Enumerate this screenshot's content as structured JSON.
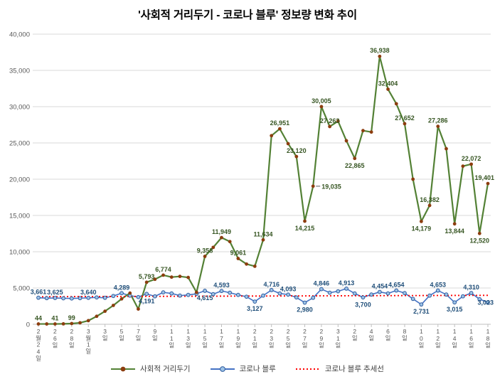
{
  "chart_data": {
    "type": "line",
    "title": "'사회적 거리두기 - 코로나 블루' 정보량 변화 추이",
    "xlabel": "",
    "ylabel": "",
    "ylim": [
      0,
      40000
    ],
    "ystep": 5000,
    "grid": true,
    "legend_position": "bottom",
    "y_tick_labels": [
      "0",
      "5,000",
      "10,000",
      "15,000",
      "20,000",
      "25,000",
      "30,000",
      "35,000",
      "40,000"
    ],
    "x_tick_labels": [
      "2월24일",
      "26일",
      "28일",
      "3월1일",
      "3일",
      "5일",
      "7일",
      "9일",
      "11일",
      "13일",
      "15일",
      "17일",
      "19일",
      "21일",
      "23일",
      "25일",
      "27일",
      "29일",
      "31일",
      "2일",
      "4일",
      "6일",
      "8일",
      "10일",
      "12일",
      "14일",
      "16일",
      "18일"
    ],
    "series": [
      {
        "name": "사회적 거리두기",
        "color": "#538135",
        "marker_color": "#8C3D0F",
        "label_color": "#375623",
        "values": [
          44,
          42,
          41,
          60,
          99,
          200,
          500,
          1100,
          1800,
          2600,
          3500,
          4300,
          2100,
          5793,
          6200,
          6774,
          6500,
          6600,
          6450,
          4400,
          9358,
          10600,
          11949,
          11400,
          9061,
          8300,
          8000,
          11634,
          26000,
          26951,
          24900,
          23120,
          14215,
          19035,
          30005,
          27263,
          28000,
          25300,
          22865,
          26700,
          26500,
          36938,
          32404,
          30400,
          27652,
          20000,
          14179,
          16382,
          27286,
          24200,
          13844,
          21800,
          22072,
          12520,
          19401
        ],
        "labels": [
          {
            "i": 0,
            "t": "44",
            "pos": "above"
          },
          {
            "i": 2,
            "t": "41",
            "pos": "above"
          },
          {
            "i": 4,
            "t": "99",
            "pos": "above"
          },
          {
            "i": 13,
            "t": "5,793",
            "pos": "above"
          },
          {
            "i": 15,
            "t": "6,774",
            "pos": "above"
          },
          {
            "i": 20,
            "t": "9,358",
            "pos": "above"
          },
          {
            "i": 22,
            "t": "11,949",
            "pos": "above"
          },
          {
            "i": 24,
            "t": "9,061",
            "pos": "above"
          },
          {
            "i": 27,
            "t": "11,634",
            "pos": "above"
          },
          {
            "i": 29,
            "t": "26,951",
            "pos": "above"
          },
          {
            "i": 31,
            "t": "23,120",
            "pos": "above"
          },
          {
            "i": 32,
            "t": "14,215",
            "pos": "below"
          },
          {
            "i": 33,
            "t": "19,035",
            "pos": "right"
          },
          {
            "i": 34,
            "t": "30,005",
            "pos": "above"
          },
          {
            "i": 35,
            "t": "27,263",
            "pos": "above"
          },
          {
            "i": 38,
            "t": "22,865",
            "pos": "below"
          },
          {
            "i": 41,
            "t": "36,938",
            "pos": "above"
          },
          {
            "i": 42,
            "t": "32,404",
            "pos": "above"
          },
          {
            "i": 44,
            "t": "27,652",
            "pos": "above"
          },
          {
            "i": 46,
            "t": "14,179",
            "pos": "below"
          },
          {
            "i": 47,
            "t": "16,382",
            "pos": "above"
          },
          {
            "i": 48,
            "t": "27,286",
            "pos": "above"
          },
          {
            "i": 50,
            "t": "13,844",
            "pos": "below"
          },
          {
            "i": 52,
            "t": "22,072",
            "pos": "above"
          },
          {
            "i": 53,
            "t": "12,520",
            "pos": "below"
          },
          {
            "i": 54,
            "t": "19,401",
            "pos": "above"
          }
        ]
      },
      {
        "name": "코로나 블루",
        "color": "#4472C4",
        "marker_fill": "#9DC3E6",
        "marker_color": "#2E5B9E",
        "label_color": "#1F4E79",
        "values": [
          3661,
          3600,
          3625,
          3580,
          3560,
          3600,
          3640,
          3700,
          3650,
          3900,
          4289,
          3950,
          3750,
          4191,
          3850,
          4400,
          4250,
          3950,
          4050,
          4200,
          4615,
          4150,
          4593,
          4350,
          4050,
          3800,
          3127,
          3950,
          4716,
          4250,
          4093,
          3700,
          2980,
          3650,
          4846,
          4350,
          4550,
          4913,
          4250,
          3700,
          4100,
          4454,
          4250,
          4654,
          4300,
          3500,
          2731,
          3950,
          4653,
          4100,
          3015,
          3850,
          4310,
          3450,
          3023
        ],
        "labels": [
          {
            "i": 0,
            "t": "3,661",
            "pos": "above"
          },
          {
            "i": 2,
            "t": "3,625",
            "pos": "above"
          },
          {
            "i": 6,
            "t": "3,640",
            "pos": "above"
          },
          {
            "i": 10,
            "t": "4,289",
            "pos": "above"
          },
          {
            "i": 13,
            "t": "4,191",
            "pos": "below"
          },
          {
            "i": 20,
            "t": "4,615",
            "pos": "below"
          },
          {
            "i": 22,
            "t": "4,593",
            "pos": "above"
          },
          {
            "i": 26,
            "t": "3,127",
            "pos": "below"
          },
          {
            "i": 28,
            "t": "4,716",
            "pos": "above"
          },
          {
            "i": 30,
            "t": "4,093",
            "pos": "above"
          },
          {
            "i": 32,
            "t": "2,980",
            "pos": "below"
          },
          {
            "i": 34,
            "t": "4,846",
            "pos": "above"
          },
          {
            "i": 37,
            "t": "4,913",
            "pos": "above"
          },
          {
            "i": 39,
            "t": "3,700",
            "pos": "below"
          },
          {
            "i": 41,
            "t": "4,454",
            "pos": "above"
          },
          {
            "i": 43,
            "t": "4,654",
            "pos": "above"
          },
          {
            "i": 46,
            "t": "2,731",
            "pos": "below"
          },
          {
            "i": 48,
            "t": "4,653",
            "pos": "above"
          },
          {
            "i": 50,
            "t": "3,015",
            "pos": "below"
          },
          {
            "i": 52,
            "t": "4,310",
            "pos": "above"
          },
          {
            "i": 54,
            "t": "3,023",
            "pos": "rightedge"
          }
        ]
      }
    ],
    "trendline": {
      "name": "코로나 블루 추세선",
      "color": "#FF0000",
      "start": 3800,
      "end": 3990
    },
    "colors": {
      "gridline": "#D9D9D9",
      "axis": "#BFBFBF",
      "tick_text": "#595959"
    }
  }
}
